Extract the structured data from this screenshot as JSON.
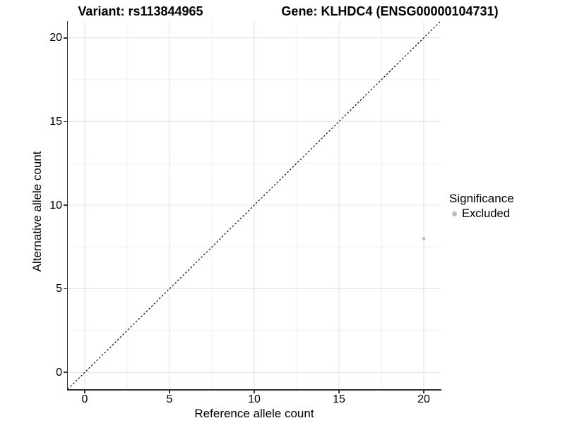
{
  "chart_data": {
    "type": "scatter",
    "title_left": "Variant: rs113844965",
    "title_right": "Gene: KLHDC4 (ENSG00000104731)",
    "xlabel": "Reference allele count",
    "ylabel": "Alternative allele count",
    "xlim": [
      -1,
      21
    ],
    "ylim": [
      -1,
      21
    ],
    "xticks": [
      0,
      5,
      10,
      15,
      20
    ],
    "yticks": [
      0,
      5,
      10,
      15,
      20
    ],
    "xticks_minor": [
      2.5,
      7.5,
      12.5,
      17.5
    ],
    "yticks_minor": [
      2.5,
      7.5,
      12.5,
      17.5
    ],
    "grid": "major+minor",
    "series": [
      {
        "name": "Excluded",
        "color": "#bebebe",
        "points": [
          {
            "x": 20,
            "y": 8
          }
        ]
      }
    ],
    "reference_line": {
      "type": "identity",
      "equation": "y = x",
      "style": "dashed",
      "color": "#000000"
    },
    "legend": {
      "title": "Significance",
      "position": "right",
      "items": [
        {
          "label": "Excluded",
          "color": "#bebebe"
        }
      ]
    }
  },
  "style": {
    "background": "#ffffff",
    "grid_major_color": "#e3e3e3",
    "grid_minor_color": "#eeeeee",
    "axis_color": "#333333",
    "tick_label_color": "#000000",
    "point_color": "#bebebe"
  }
}
